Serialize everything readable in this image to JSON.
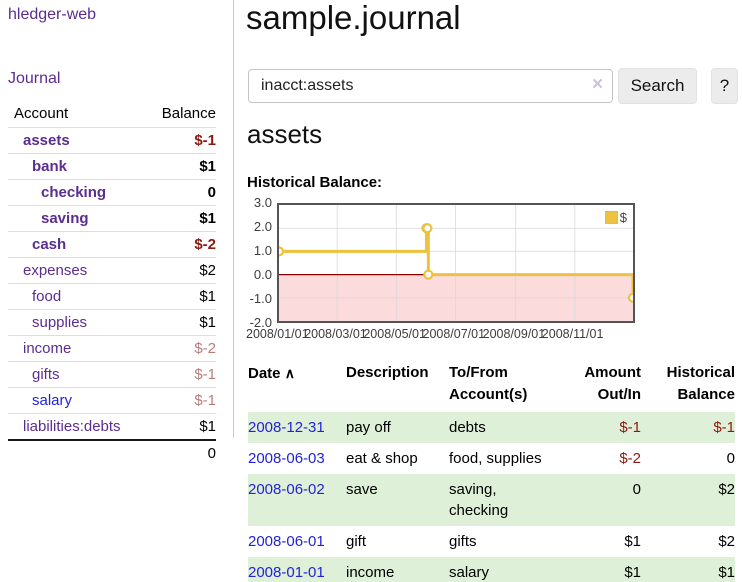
{
  "app": {
    "brand": "hledger-web",
    "nav": {
      "journal_label": "Journal"
    }
  },
  "sidebar": {
    "header": {
      "account": "Account",
      "balance": "Balance"
    },
    "accounts": [
      {
        "label": "assets",
        "indent": 1,
        "bold": true,
        "balance": "$-1",
        "balance_style": "neg",
        "link": "purple"
      },
      {
        "label": "bank",
        "indent": 2,
        "bold": true,
        "balance": "$1",
        "balance_style": "pos",
        "link": "purple"
      },
      {
        "label": "checking",
        "indent": 3,
        "bold": true,
        "balance": "0",
        "balance_style": "pos",
        "link": "purple"
      },
      {
        "label": "saving",
        "indent": 3,
        "bold": true,
        "balance": "$1",
        "balance_style": "pos",
        "link": "purple"
      },
      {
        "label": "cash",
        "indent": 2,
        "bold": true,
        "balance": "$-2",
        "balance_style": "neg",
        "link": "purple"
      },
      {
        "label": "expenses",
        "indent": 1,
        "bold": false,
        "balance": "$2",
        "balance_style": "pos-plain",
        "link": "purple"
      },
      {
        "label": "food",
        "indent": 2,
        "bold": false,
        "balance": "$1",
        "balance_style": "pos-plain",
        "link": "purple"
      },
      {
        "label": "supplies",
        "indent": 2,
        "bold": false,
        "balance": "$1",
        "balance_style": "pos-plain",
        "link": "purple"
      },
      {
        "label": "income",
        "indent": 1,
        "bold": false,
        "balance": "$-2",
        "balance_style": "neg-muted",
        "link": "purple"
      },
      {
        "label": "gifts",
        "indent": 2,
        "bold": false,
        "balance": "$-1",
        "balance_style": "neg-muted",
        "link": "purple"
      },
      {
        "label": "salary",
        "indent": 2,
        "bold": false,
        "balance": "$-1",
        "balance_style": "neg-muted",
        "link": "blue"
      },
      {
        "label": "liabilities:debts",
        "indent": 1,
        "bold": false,
        "balance": "$1",
        "balance_style": "pos-plain",
        "link": "purple"
      }
    ],
    "total": "0"
  },
  "main": {
    "title": "sample.journal",
    "search": {
      "value": "inacct:assets",
      "clear_icon": "×",
      "search_button": "Search",
      "help_button": "?"
    },
    "section_title": "assets",
    "chart_heading": "Historical Balance:"
  },
  "chart_data": {
    "type": "line",
    "title": "Historical Balance:",
    "series": [
      {
        "name": "$",
        "color": "#edc240",
        "step": true,
        "points": [
          {
            "date": "2008-01-01",
            "value": 1
          },
          {
            "date": "2008-06-01",
            "value": 2
          },
          {
            "date": "2008-06-02",
            "value": 2
          },
          {
            "date": "2008-06-03",
            "value": 0
          },
          {
            "date": "2008-12-31",
            "value": -1
          }
        ]
      }
    ],
    "x_range": [
      "2008-01-01",
      "2008-12-31"
    ],
    "x_ticks": [
      {
        "date": "2008-01-01",
        "label": "2008/01/01"
      },
      {
        "date": "2008-03-01",
        "label": "2008/03/01"
      },
      {
        "date": "2008-05-01",
        "label": "2008/05/01"
      },
      {
        "date": "2008-07-01",
        "label": "2008/07/01"
      },
      {
        "date": "2008-09-01",
        "label": "2008/09/01"
      },
      {
        "date": "2008-11-01",
        "label": "2008/11/01"
      }
    ],
    "y_ticks": [
      "3.0",
      "2.0",
      "1.0",
      "0.0",
      "-1.0",
      "-2.0"
    ],
    "ylim": [
      -2,
      3
    ],
    "grid": true,
    "legend_position": "top-right",
    "legend_label": "$",
    "negative_region_fill": "#fbdbdb",
    "zero_line_color": "#8b0000",
    "grid_color": "#d8d8d8",
    "border_color": "#545454"
  },
  "register": {
    "headers": {
      "date": "Date",
      "sort_indicator": "∧",
      "description": "Description",
      "accounts": "To/From Account(s)",
      "amount": "Amount Out/In",
      "balance": "Historical Balance"
    },
    "rows": [
      {
        "date": "2008-12-31",
        "description": "pay off",
        "accounts": "debts",
        "amount": "$-1",
        "amount_negative": true,
        "balance": "$-1",
        "balance_negative": true,
        "stripe": true
      },
      {
        "date": "2008-06-03",
        "description": "eat & shop",
        "accounts": "food, supplies",
        "amount": "$-2",
        "amount_negative": true,
        "balance": "0",
        "balance_negative": false,
        "stripe": false
      },
      {
        "date": "2008-06-02",
        "description": "save",
        "accounts": "saving, checking",
        "amount": "0",
        "amount_negative": false,
        "balance": "$2",
        "balance_negative": false,
        "stripe": true
      },
      {
        "date": "2008-06-01",
        "description": "gift",
        "accounts": "gifts",
        "amount": "$1",
        "amount_negative": false,
        "balance": "$2",
        "balance_negative": false,
        "stripe": false
      },
      {
        "date": "2008-01-01",
        "description": "income",
        "accounts": "salary",
        "amount": "$1",
        "amount_negative": false,
        "balance": "$1",
        "balance_negative": false,
        "stripe": true
      }
    ]
  },
  "colors": {
    "link_purple": "#5b2d91",
    "link_blue": "#2323d6",
    "negative_strong": "#8b1a10",
    "negative_muted": "#b97c7c",
    "row_stripe_green": "#dff0d8",
    "series_yellow": "#edc240"
  }
}
